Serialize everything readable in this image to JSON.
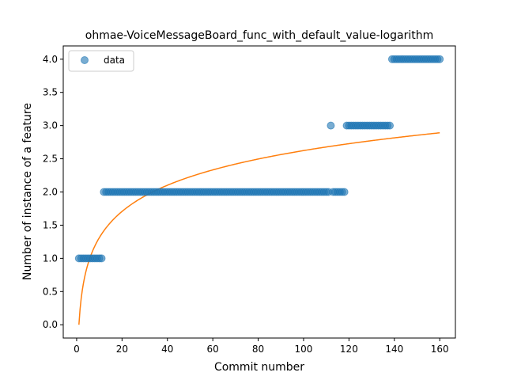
{
  "chart_data": {
    "type": "scatter",
    "title": "ohmae-VoiceMessageBoard_func_with_default_value-logarithm",
    "xlabel": "Commit number",
    "ylabel": "Number of instance of a feature",
    "xlim": [
      -5.9,
      166.9
    ],
    "ylim": [
      -0.2,
      4.2
    ],
    "xticks": [
      0,
      20,
      40,
      60,
      80,
      100,
      120,
      140,
      160
    ],
    "yticks": [
      0.0,
      0.5,
      1.0,
      1.5,
      2.0,
      2.5,
      3.0,
      3.5,
      4.0
    ],
    "xtick_labels": [
      "0",
      "20",
      "40",
      "60",
      "80",
      "100",
      "120",
      "140",
      "160"
    ],
    "ytick_labels": [
      "0.0",
      "0.5",
      "1.0",
      "1.5",
      "2.0",
      "2.5",
      "3.0",
      "3.5",
      "4.0"
    ],
    "legend": {
      "placement": "top-left",
      "entries": [
        "data"
      ]
    },
    "grid": false,
    "colors": {
      "data": "#1f77b4",
      "fit": "#ff7f0e"
    },
    "series": [
      {
        "name": "data",
        "kind": "scatter",
        "segments": [
          {
            "x_from": 1,
            "x_to": 11,
            "y": 1
          },
          {
            "x_from": 12,
            "x_to": 111,
            "y": 2
          },
          {
            "x_from": 113,
            "x_to": 118,
            "y": 2
          },
          {
            "x_from": 119,
            "x_to": 138,
            "y": 3
          },
          {
            "x_from": 139,
            "x_to": 160,
            "y": 4
          }
        ],
        "points": [
          {
            "x": 112,
            "y": 3
          }
        ]
      },
      {
        "kind": "line",
        "fit": {
          "model": "logarithmic",
          "a": 0.0,
          "b": 0.5697,
          "x_from": 1,
          "x_to": 160
        }
      }
    ]
  }
}
